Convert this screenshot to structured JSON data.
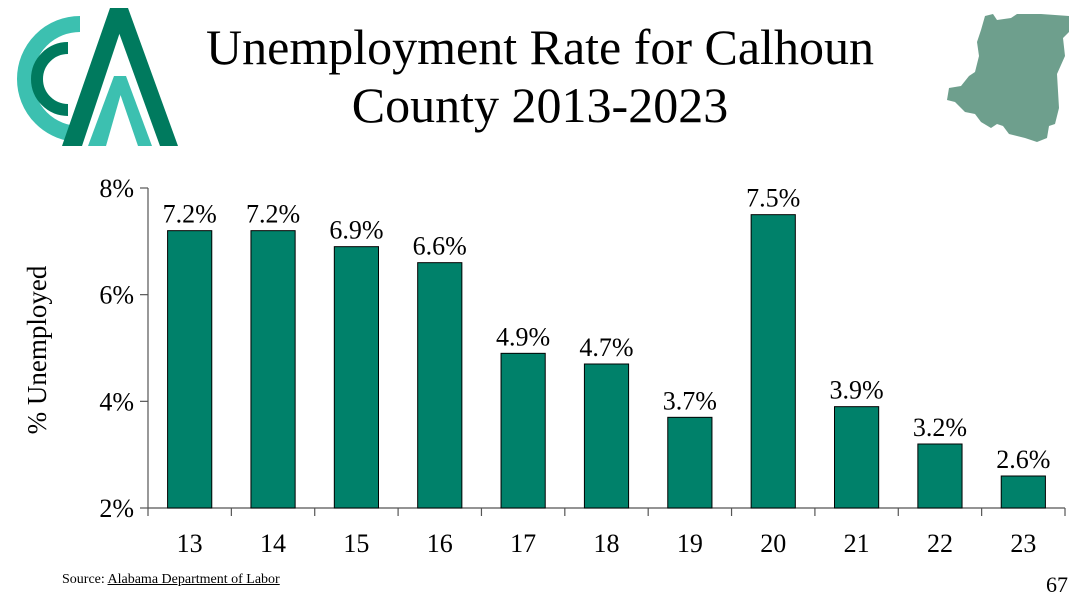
{
  "slide": {
    "title_line1": "Unemployment Rate for Calhoun",
    "title_line2": "County 2013-2023",
    "source_prefix": "Source: ",
    "source_link": "Alabama Department of Labor",
    "page_number": "67"
  },
  "colors": {
    "bar": "#00816A",
    "logo_dark": "#007A5E",
    "logo_light": "#3CC0B0",
    "map": "#6E9F8D"
  },
  "icons": {
    "logo": "calhoun-logo-icon",
    "map": "calhoun-county-map-icon"
  },
  "chart_data": {
    "type": "bar",
    "categories": [
      "13",
      "14",
      "15",
      "16",
      "17",
      "18",
      "19",
      "20",
      "21",
      "22",
      "23"
    ],
    "values": [
      7.2,
      7.2,
      6.9,
      6.6,
      4.9,
      4.7,
      3.7,
      7.5,
      3.9,
      3.2,
      2.6
    ],
    "data_labels": [
      "7.2%",
      "7.2%",
      "6.9%",
      "6.6%",
      "4.9%",
      "4.7%",
      "3.7%",
      "7.5%",
      "3.9%",
      "3.2%",
      "2.6%"
    ],
    "title": "Unemployment Rate for Calhoun County 2013-2023",
    "xlabel": "",
    "ylabel": "% Unemployed",
    "ylim": [
      2,
      8
    ],
    "yticks": [
      2,
      4,
      6,
      8
    ],
    "ytick_labels": [
      "2%",
      "4%",
      "6%",
      "8%"
    ],
    "grid": false,
    "legend": "none"
  }
}
